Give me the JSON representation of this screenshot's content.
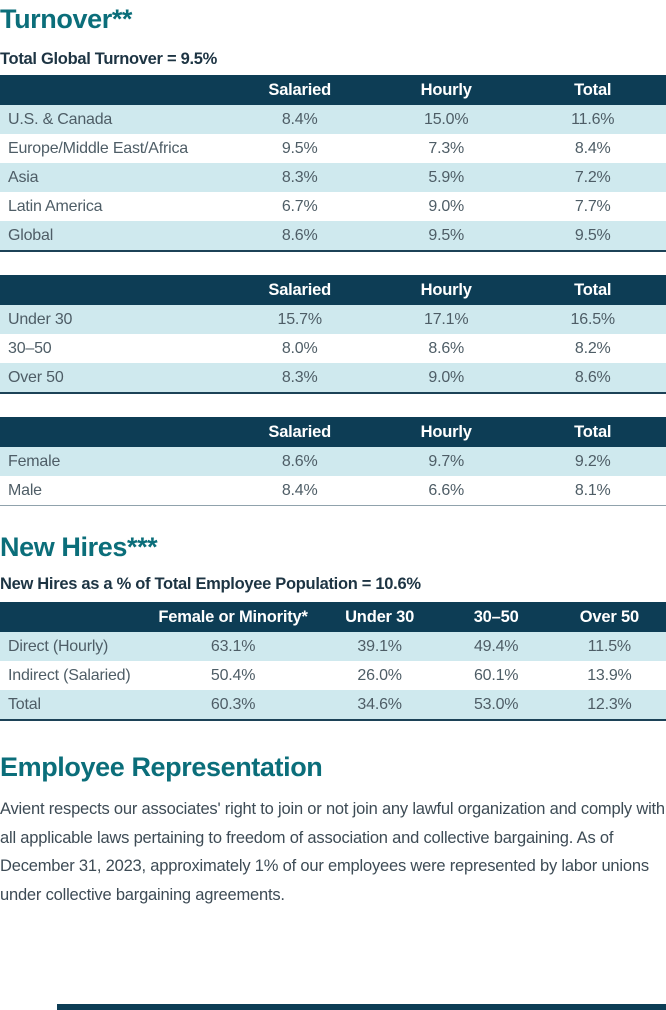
{
  "colors": {
    "teal_heading": "#0b6e7a",
    "navy_table_header": "#0d3d55",
    "light_blue_row": "#cfe9ee"
  },
  "turnover": {
    "heading": "Turnover**",
    "subheading": "Total Global Turnover = 9.5%",
    "tables": [
      {
        "name": "region",
        "columns": [
          "Salaried",
          "Hourly",
          "Total"
        ],
        "rows": [
          {
            "label": "U.S. & Canada",
            "values": [
              "8.4%",
              "15.0%",
              "11.6%"
            ]
          },
          {
            "label": "Europe/Middle East/Africa",
            "values": [
              "9.5%",
              "7.3%",
              "8.4%"
            ]
          },
          {
            "label": "Asia",
            "values": [
              "8.3%",
              "5.9%",
              "7.2%"
            ]
          },
          {
            "label": "Latin America",
            "values": [
              "6.7%",
              "9.0%",
              "7.7%"
            ]
          },
          {
            "label": "Global",
            "values": [
              "8.6%",
              "9.5%",
              "9.5%"
            ]
          }
        ]
      },
      {
        "name": "age",
        "columns": [
          "Salaried",
          "Hourly",
          "Total"
        ],
        "rows": [
          {
            "label": "Under 30",
            "values": [
              "15.7%",
              "17.1%",
              "16.5%"
            ]
          },
          {
            "label": "30–50",
            "values": [
              "8.0%",
              "8.6%",
              "8.2%"
            ]
          },
          {
            "label": "Over 50",
            "values": [
              "8.3%",
              "9.0%",
              "8.6%"
            ]
          }
        ]
      },
      {
        "name": "gender",
        "columns": [
          "Salaried",
          "Hourly",
          "Total"
        ],
        "rows": [
          {
            "label": "Female",
            "values": [
              "8.6%",
              "9.7%",
              "9.2%"
            ]
          },
          {
            "label": "Male",
            "values": [
              "8.4%",
              "6.6%",
              "8.1%"
            ]
          }
        ]
      }
    ]
  },
  "new_hires": {
    "heading": "New Hires***",
    "subheading": "New Hires as a % of Total Employee Population = 10.6%",
    "table": {
      "name": "new-hires",
      "columns": [
        "Female or Minority*",
        "Under 30",
        "30–50",
        "Over 50"
      ],
      "rows": [
        {
          "label": "Direct (Hourly)",
          "values": [
            "63.1%",
            "39.1%",
            "49.4%",
            "11.5%"
          ]
        },
        {
          "label": "Indirect (Salaried)",
          "values": [
            "50.4%",
            "26.0%",
            "60.1%",
            "13.9%"
          ]
        },
        {
          "label": "Total",
          "values": [
            "60.3%",
            "34.6%",
            "53.0%",
            "12.3%"
          ]
        }
      ]
    }
  },
  "employee_representation": {
    "heading": "Employee Representation",
    "paragraph": "Avient respects our associates' right to join or not join any lawful organization and comply with all applicable laws pertaining to freedom of association and collective bargaining. As of December 31, 2023, approximately 1% of our employees were represented by labor unions under collective bargaining agreements."
  }
}
